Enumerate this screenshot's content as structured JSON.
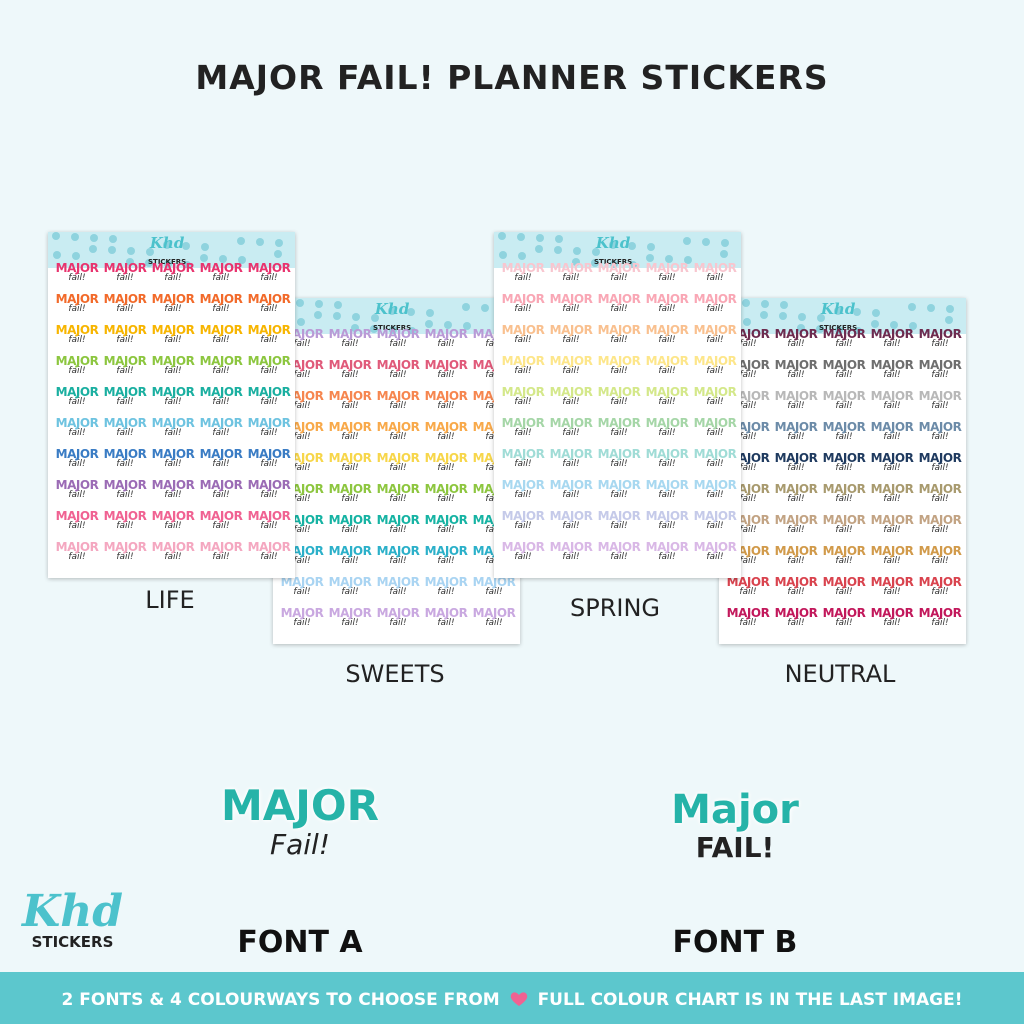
{
  "header": {
    "title": "MAJOR FAIL! PLANNER STICKERS"
  },
  "brand": {
    "name": "Khd",
    "sub": "STICKERS"
  },
  "sticker": {
    "top": "MAJOR",
    "bottom": "fail!"
  },
  "sheets": [
    {
      "label": "SWEETS",
      "row_colors": [
        "#b99ad6",
        "#e05a7a",
        "#f6864f",
        "#f8a94a",
        "#f7d64a",
        "#8dc63f",
        "#16b3a3",
        "#2bb0c9",
        "#a9d4f2",
        "#c9a8e0"
      ]
    },
    {
      "label": "NEUTRAL",
      "row_colors": [
        "#6d2b4f",
        "#6e6e6e",
        "#b8b8b8",
        "#6c8ba8",
        "#1f3a5f",
        "#a89a6e",
        "#c2a383",
        "#d19a4a",
        "#d9434e",
        "#c2185b"
      ]
    },
    {
      "label": "LIFE",
      "row_colors": [
        "#e8336e",
        "#f26a2a",
        "#f7b500",
        "#8cc63f",
        "#1aafa0",
        "#6ec3e0",
        "#3a7cc4",
        "#9b6bb5",
        "#f06292",
        "#f4a7c0"
      ]
    },
    {
      "label": "SPRING",
      "row_colors": [
        "#f8c6cf",
        "#f9a7b5",
        "#f9c08f",
        "#fde68a",
        "#d4e88a",
        "#a5d6a7",
        "#a0dcd6",
        "#a8d8f0",
        "#c5cae9",
        "#d9b8e6"
      ]
    }
  ],
  "samples": [
    {
      "top": "MAJOR",
      "bottom": "Fail!",
      "label": "FONT A"
    },
    {
      "top": "Major",
      "bottom": "FAIL!",
      "label": "FONT B"
    }
  ],
  "banner": {
    "before": "2 FONTS & 4 COLOURWAYS TO CHOOSE FROM",
    "after": "FULL COLOUR CHART IS IN THE LAST IMAGE!"
  }
}
